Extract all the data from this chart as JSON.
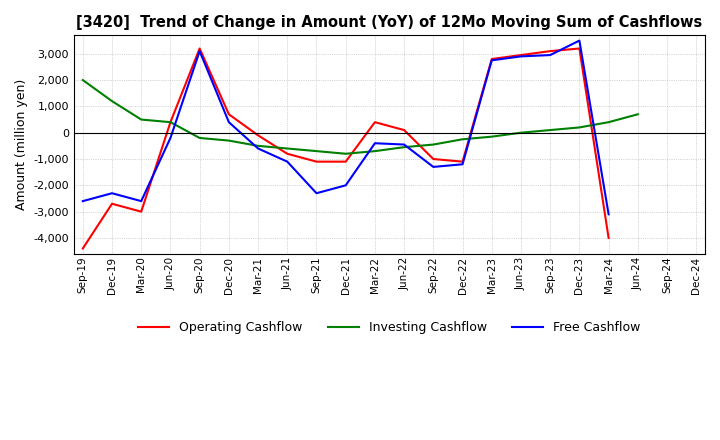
{
  "title": "[3420]  Trend of Change in Amount (YoY) of 12Mo Moving Sum of Cashflows",
  "ylabel": "Amount (million yen)",
  "x_labels": [
    "Sep-19",
    "Dec-19",
    "Mar-20",
    "Jun-20",
    "Sep-20",
    "Dec-20",
    "Mar-21",
    "Jun-21",
    "Sep-21",
    "Dec-21",
    "Mar-22",
    "Jun-22",
    "Sep-22",
    "Dec-22",
    "Mar-23",
    "Jun-23",
    "Sep-23",
    "Dec-23",
    "Mar-24",
    "Jun-24",
    "Sep-24",
    "Dec-24"
  ],
  "operating": [
    -4400,
    -2700,
    -3000,
    400,
    3200,
    700,
    -100,
    -800,
    -1100,
    -1100,
    400,
    100,
    -1000,
    -1100,
    2800,
    2950,
    3100,
    3200,
    -4000,
    null,
    null,
    null
  ],
  "investing": [
    2000,
    1200,
    500,
    400,
    -200,
    -300,
    -500,
    -600,
    -700,
    -800,
    -700,
    -550,
    -450,
    -250,
    -150,
    0,
    100,
    200,
    400,
    700,
    null,
    null
  ],
  "free": [
    -2600,
    -2300,
    -2600,
    -200,
    3100,
    400,
    -600,
    -1100,
    -2300,
    -2000,
    -400,
    -450,
    -1300,
    -1200,
    2750,
    2900,
    2950,
    3500,
    -3100,
    null,
    null,
    null
  ],
  "ylim": [
    -4600,
    3700
  ],
  "yticks": [
    -4000,
    -3000,
    -2000,
    -1000,
    0,
    1000,
    2000,
    3000
  ],
  "operating_color": "#ff0000",
  "investing_color": "#008000",
  "free_color": "#0000ff",
  "background_color": "#ffffff",
  "grid_color": "#b0b0b0"
}
